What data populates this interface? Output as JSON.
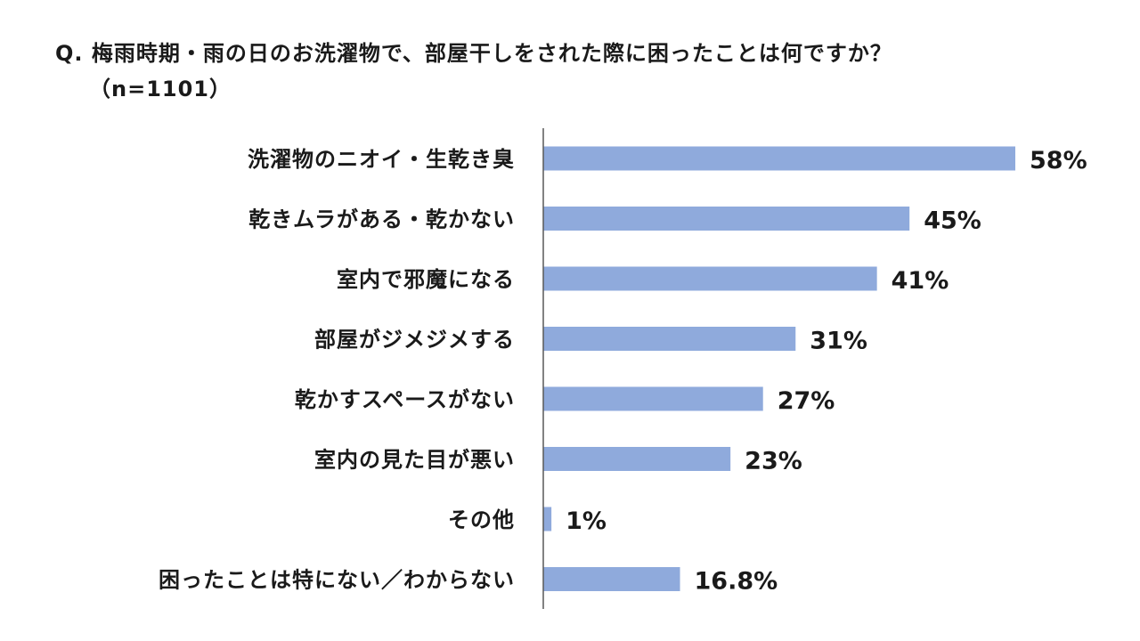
{
  "chart_data": {
    "type": "bar",
    "orientation": "horizontal",
    "title": "Q. 梅雨時期・雨の日のお洗濯物で、部屋干しをされた際に困ったことは何ですか？",
    "subtitle": "（n=1101）",
    "categories": [
      "洗濯物のニオイ・生乾き臭",
      "乾きムラがある・乾かない",
      "室内で邪魔になる",
      "部屋がジメジメする",
      "乾かすスペースがない",
      "室内の見た目が悪い",
      "その他",
      "困ったことは特にない／わからない"
    ],
    "values": [
      58,
      45,
      41,
      31,
      27,
      23,
      1,
      16.8
    ],
    "data_labels": [
      "58%",
      "45%",
      "41%",
      "31%",
      "27%",
      "23%",
      "1%",
      "16.8%"
    ],
    "unit": "%",
    "xlim": [
      0,
      70
    ],
    "grid": false,
    "legend": "none",
    "bar_color": "#8faadc",
    "axis_color": "#595959"
  }
}
